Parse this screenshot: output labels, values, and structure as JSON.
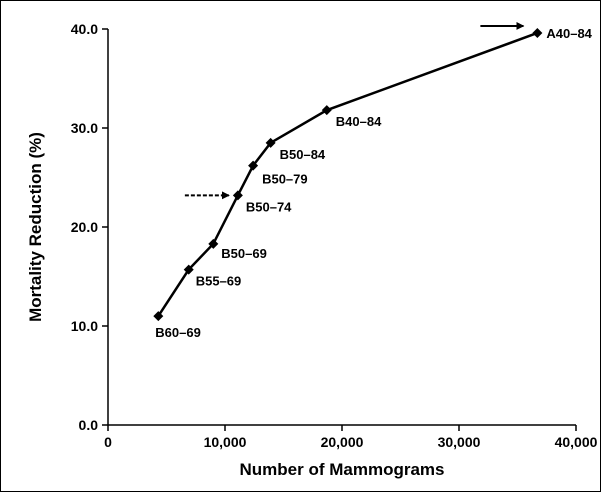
{
  "chart_data": {
    "type": "line",
    "xlabel": "Number of Mammograms",
    "ylabel": "Mortality Reduction (%)",
    "xlim": [
      0,
      40000
    ],
    "ylim": [
      0,
      40
    ],
    "xticks": [
      0,
      10000,
      20000,
      30000,
      40000
    ],
    "xtick_labels": [
      "0",
      "10,000",
      "20,000",
      "30,000",
      "40,000"
    ],
    "yticks": [
      0,
      10,
      20,
      30,
      40
    ],
    "ytick_labels": [
      "0.0",
      "10.0",
      "20.0",
      "30.0",
      "40.0"
    ],
    "grid": false,
    "series": [
      {
        "points": [
          {
            "label": "B60–69",
            "x": 4300,
            "y": 11.0
          },
          {
            "label": "B55–69",
            "x": 6900,
            "y": 15.7
          },
          {
            "label": "B50–69",
            "x": 9000,
            "y": 18.3
          },
          {
            "label": "B50–74",
            "x": 11100,
            "y": 23.2
          },
          {
            "label": "B50–79",
            "x": 12400,
            "y": 26.2
          },
          {
            "label": "B50–84",
            "x": 13900,
            "y": 28.5
          },
          {
            "label": "B40–84",
            "x": 18700,
            "y": 31.8
          },
          {
            "label": "A40–84",
            "x": 36700,
            "y": 39.6
          }
        ]
      }
    ],
    "annotations": [
      {
        "type": "arrow",
        "style": "dashed",
        "points_to": "B50–74"
      },
      {
        "type": "arrow",
        "style": "solid",
        "points_to": "A40–84"
      }
    ]
  }
}
